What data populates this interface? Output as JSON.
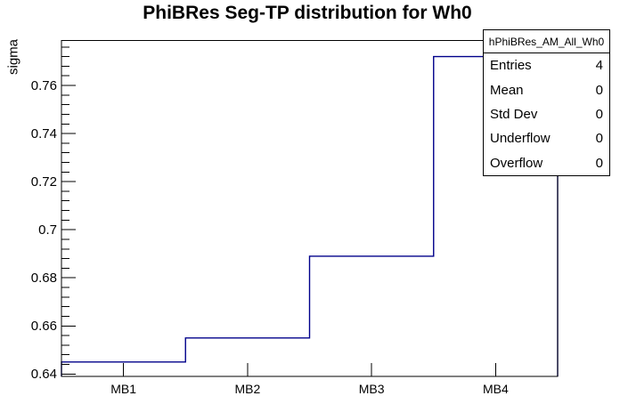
{
  "page": {
    "background": "#ffffff"
  },
  "chart_data": {
    "type": "histogram-step",
    "title": "PhiBRes Seg-TP distribution for Wh0",
    "xlabel": "",
    "ylabel": "sigma",
    "categories": [
      "MB1",
      "MB2",
      "MB3",
      "MB4"
    ],
    "values": [
      0.645,
      0.655,
      0.689,
      0.772
    ],
    "ylim": [
      0.639,
      0.7787
    ],
    "yticks": {
      "major_start": 0.64,
      "major_step": 0.02,
      "minor_step": 0.004,
      "labels": [
        "0.64",
        "0.66",
        "0.68",
        "0.7",
        "0.72",
        "0.74",
        "0.76"
      ]
    },
    "grid": false,
    "legend_position": "none",
    "line_color": "#00008b",
    "frame_color": "#000000",
    "text_color": "#000000"
  },
  "stats_box": {
    "title": "hPhiBRes_AM_All_Wh0",
    "rows": [
      {
        "label": "Entries",
        "value": "4"
      },
      {
        "label": "Mean",
        "value": "0"
      },
      {
        "label": "Std Dev",
        "value": "0"
      },
      {
        "label": "Underflow",
        "value": "0"
      },
      {
        "label": "Overflow",
        "value": "0"
      }
    ]
  }
}
